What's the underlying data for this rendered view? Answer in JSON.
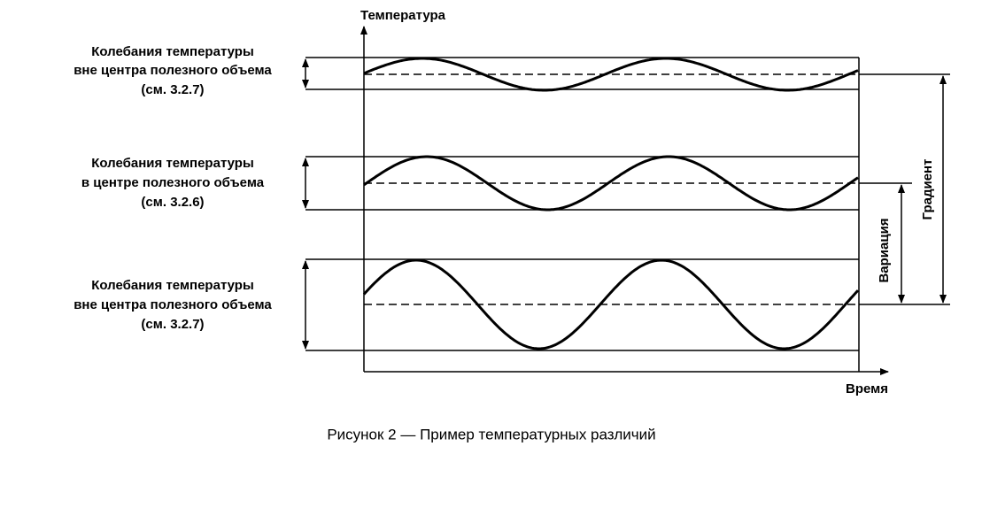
{
  "axes": {
    "y_label": "Температура",
    "x_label": "Время"
  },
  "bands": [
    {
      "lines": [
        "Колебания температуры",
        "вне центра полезного объема",
        "(см. 3.2.7)"
      ]
    },
    {
      "lines": [
        "Колебания температуры",
        "в центре полезного объема",
        "(см. 3.2.6)"
      ]
    },
    {
      "lines": [
        "Колебания температуры",
        "вне центра полезного объема",
        "(см. 3.2.7)"
      ]
    }
  ],
  "measures": {
    "gradient": "Градиент",
    "variation": "Вариация"
  },
  "caption": "Рисунок 2 — Пример температурных различий"
}
